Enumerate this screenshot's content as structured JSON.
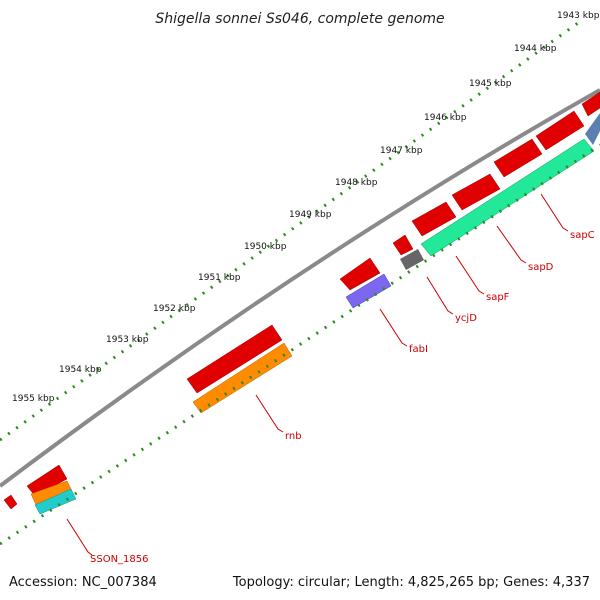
{
  "title": "Shigella sonnei Ss046, complete genome",
  "accession_text": "Accession: NC_007384",
  "summary_text": "Topology: circular; Length: 4,825,265 bp; Genes: 4,337",
  "colors": {
    "backbone": "#8a8a8a",
    "ticks": "#2e8b1e",
    "gene_label": "#cc0000",
    "leader": "#cc0000"
  },
  "kbp_labels": [
    "1943 kbp",
    "1944 kbp",
    "1945 kbp",
    "1946 kbp",
    "1947 kbp",
    "1948 kbp",
    "1949 kbp",
    "1950 kbp",
    "1951 kbp",
    "1952 kbp",
    "1953 kbp",
    "1954 kbp",
    "1955 kbp"
  ],
  "genes": [
    {
      "name": "sapC",
      "color": "#ff0000"
    },
    {
      "name": "sapD",
      "color": "#ff0000"
    },
    {
      "name": "sapF",
      "color": "#ff0000"
    },
    {
      "name": "ycjD",
      "color": "#ff0000"
    },
    {
      "name": "fabI",
      "color": "#ff0000"
    },
    {
      "name": "rnb",
      "color": "#ff0000"
    },
    {
      "name": "SSON_1856",
      "color": "#ff0000"
    }
  ],
  "feature_colors": {
    "cds": "#ff0000",
    "teal": "#22e89a",
    "slate": "#5a7fb0",
    "gray": "#666666",
    "purple": "#7b68ee",
    "orange": "#ff8c00",
    "cyan": "#22cccc"
  }
}
